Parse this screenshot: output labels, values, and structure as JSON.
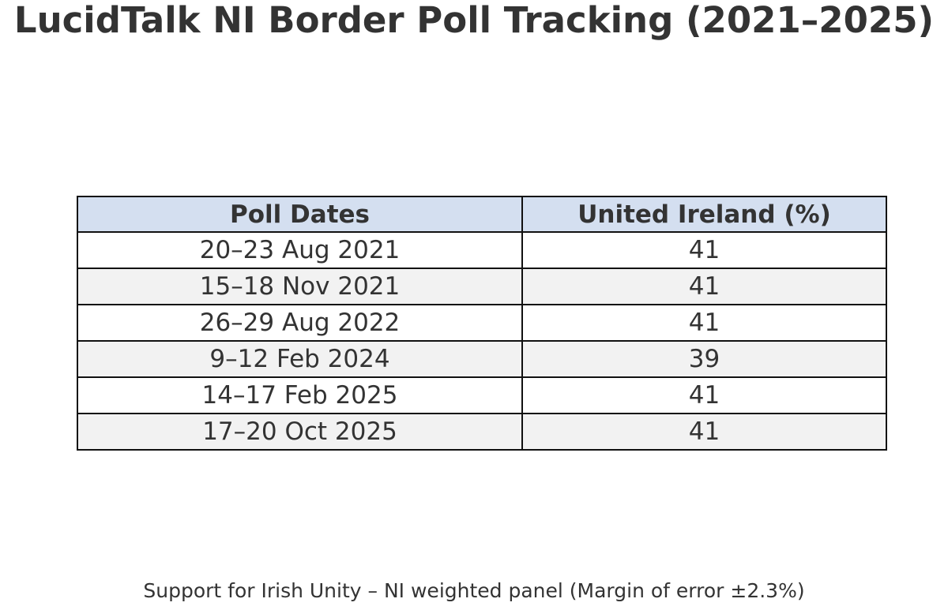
{
  "chart_data": {
    "type": "table",
    "title": "LucidTalk NI Border Poll Tracking (2021–2025)",
    "columns": [
      "Poll Dates",
      "United Ireland (%)"
    ],
    "rows": [
      [
        "20–23 Aug 2021",
        "41"
      ],
      [
        "15–18 Nov 2021",
        "41"
      ],
      [
        "26–29 Aug 2022",
        "41"
      ],
      [
        "9–12 Feb 2024",
        "39"
      ],
      [
        "14–17 Feb 2025",
        "41"
      ],
      [
        "17–20 Oct 2025",
        "41"
      ]
    ],
    "caption": "Support for Irish Unity – NI weighted panel (Margin of error ±2.3%)",
    "colors": {
      "header_bg": "#d4dff0",
      "row_alt_bg": "#f2f2f2",
      "row_bg": "#ffffff",
      "border": "#111111",
      "text": "#333333"
    }
  }
}
